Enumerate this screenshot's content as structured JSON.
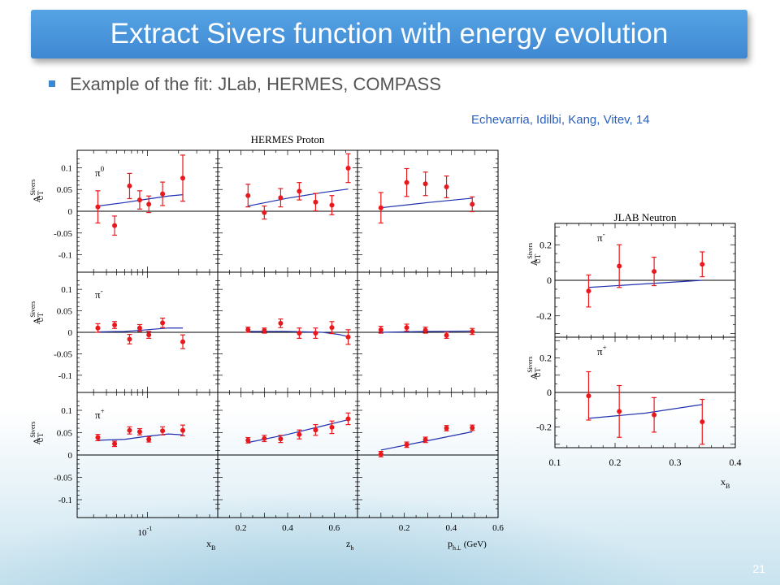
{
  "slide": {
    "title": "Extract Sivers function with energy evolution",
    "bullet": "Example of the fit: JLab, HERMES, COMPASS",
    "credit": "Echevarria, Idilbi, Kang, Vitev, 14",
    "page_number": "21"
  },
  "colors": {
    "title_bar": "#4a95dc",
    "data_point": "#e8181c",
    "fit_curve": "#1f2fb0",
    "credit_text": "#2a60c0"
  },
  "chart_data": [
    {
      "type": "scatter",
      "title": "HERMES Proton",
      "y_axis_label": {
        "main": "A",
        "sup": "Sivers",
        "sub": "UT"
      },
      "ylim": [
        -0.14,
        0.14
      ],
      "y_ticks": [
        "0.1",
        "0.05",
        "0",
        "-0.05",
        "-0.1"
      ],
      "columns": [
        {
          "xlabel": "x",
          "xlabel_sub": "B",
          "scale": "log",
          "xlim": [
            0.0208,
            0.48
          ],
          "tick_label_main": "10",
          "tick_label_exp": "-1",
          "tick_value": 0.1
        },
        {
          "xlabel": "z",
          "xlabel_sub": "h",
          "scale": "linear",
          "xlim": [
            0.1,
            0.7
          ],
          "ticks": [
            "0.2",
            "0.4",
            "0.6"
          ]
        },
        {
          "xlabel": "p",
          "xlabel_sub": "h⊥",
          "xlabel_unit": "(GeV)",
          "scale": "linear",
          "xlim": [
            0,
            0.6
          ],
          "ticks": [
            "0.2",
            "0.4",
            "0.6"
          ]
        }
      ],
      "rows": [
        {
          "label": "π",
          "label_sup": "0",
          "panels": [
            {
              "x": [
                0.033,
                0.048,
                0.067,
                0.084,
                0.103,
                0.14,
                0.22
              ],
              "y": [
                0.01,
                -0.033,
                0.058,
                0.026,
                0.016,
                0.04,
                0.076
              ],
              "err": [
                0.037,
                0.022,
                0.029,
                0.021,
                0.019,
                0.027,
                0.053
              ],
              "fit_x": [
                0.033,
                0.06,
                0.1,
                0.16,
                0.22
              ],
              "fit_y": [
                0.012,
                0.02,
                0.028,
                0.035,
                0.038
              ]
            },
            {
              "x": [
                0.23,
                0.3,
                0.37,
                0.45,
                0.52,
                0.59,
                0.66
              ],
              "y": [
                0.036,
                -0.003,
                0.031,
                0.046,
                0.021,
                0.014,
                0.099
              ],
              "err": [
                0.026,
                0.015,
                0.021,
                0.02,
                0.02,
                0.022,
                0.033
              ],
              "fit_x": [
                0.23,
                0.4,
                0.55,
                0.66
              ],
              "fit_y": [
                0.012,
                0.03,
                0.043,
                0.051
              ]
            },
            {
              "x": [
                0.1,
                0.21,
                0.29,
                0.38,
                0.49
              ],
              "y": [
                0.008,
                0.066,
                0.063,
                0.056,
                0.016
              ],
              "err": [
                0.035,
                0.032,
                0.027,
                0.025,
                0.017
              ],
              "fit_x": [
                0.1,
                0.3,
                0.49
              ],
              "fit_y": [
                0.008,
                0.02,
                0.03
              ]
            }
          ]
        },
        {
          "label": "π",
          "label_sup": "-",
          "panels": [
            {
              "x": [
                0.033,
                0.048,
                0.067,
                0.084,
                0.103,
                0.14,
                0.22
              ],
              "y": [
                0.01,
                0.017,
                -0.016,
                0.01,
                -0.006,
                0.022,
                -0.022
              ],
              "err": [
                0.01,
                0.008,
                0.011,
                0.008,
                0.008,
                0.011,
                0.016
              ],
              "fit_x": [
                0.033,
                0.06,
                0.1,
                0.16,
                0.22
              ],
              "fit_y": [
                0.001,
                0.002,
                0.006,
                0.01,
                0.01
              ]
            },
            {
              "x": [
                0.23,
                0.3,
                0.37,
                0.45,
                0.52,
                0.59,
                0.66
              ],
              "y": [
                0.006,
                0.004,
                0.021,
                -0.002,
                -0.002,
                0.011,
                -0.011
              ],
              "err": [
                0.006,
                0.006,
                0.01,
                0.012,
                0.012,
                0.014,
                0.017
              ],
              "fit_x": [
                0.23,
                0.4,
                0.55,
                0.62,
                0.66
              ],
              "fit_y": [
                0.002,
                0.002,
                0.0,
                -0.005,
                -0.01
              ]
            },
            {
              "x": [
                0.1,
                0.21,
                0.29,
                0.38,
                0.49
              ],
              "y": [
                0.006,
                0.011,
                0.005,
                -0.007,
                0.002
              ],
              "err": [
                0.008,
                0.008,
                0.007,
                0.007,
                0.007
              ],
              "fit_x": [
                0.1,
                0.3,
                0.49
              ],
              "fit_y": [
                0.0,
                0.002,
                0.003
              ]
            }
          ]
        },
        {
          "label": "π",
          "label_sup": "+",
          "panels": [
            {
              "x": [
                0.033,
                0.048,
                0.067,
                0.084,
                0.103,
                0.14,
                0.22
              ],
              "y": [
                0.039,
                0.025,
                0.055,
                0.052,
                0.035,
                0.054,
                0.055
              ],
              "err": [
                0.007,
                0.006,
                0.008,
                0.007,
                0.006,
                0.009,
                0.012
              ],
              "fit_x": [
                0.033,
                0.06,
                0.1,
                0.16,
                0.22
              ],
              "fit_y": [
                0.033,
                0.035,
                0.042,
                0.047,
                0.045
              ]
            },
            {
              "x": [
                0.23,
                0.3,
                0.37,
                0.45,
                0.52,
                0.59,
                0.66
              ],
              "y": [
                0.033,
                0.037,
                0.036,
                0.046,
                0.056,
                0.062,
                0.081
              ],
              "err": [
                0.006,
                0.007,
                0.008,
                0.01,
                0.012,
                0.014,
                0.013
              ],
              "fit_x": [
                0.23,
                0.4,
                0.55,
                0.66
              ],
              "fit_y": [
                0.028,
                0.046,
                0.065,
                0.079
              ]
            },
            {
              "x": [
                0.1,
                0.21,
                0.29,
                0.38,
                0.49
              ],
              "y": [
                0.002,
                0.023,
                0.034,
                0.06,
                0.061
              ],
              "err": [
                0.006,
                0.006,
                0.006,
                0.006,
                0.006
              ],
              "fit_x": [
                0.1,
                0.3,
                0.49
              ],
              "fit_y": [
                0.011,
                0.032,
                0.052
              ]
            }
          ]
        }
      ]
    },
    {
      "type": "scatter",
      "title": "JLAB Neutron",
      "y_axis_label": {
        "main": "A",
        "sup": "Sivers",
        "sub": "UT"
      },
      "xlabel": "x",
      "xlabel_sub": "B",
      "xlim": [
        0.1,
        0.4
      ],
      "x_ticks": [
        "0.1",
        "0.2",
        "0.3",
        "0.4"
      ],
      "ylim": [
        -0.32,
        0.32
      ],
      "y_ticks": [
        "0.2",
        "0",
        "-0.2"
      ],
      "rows": [
        {
          "label": "π",
          "label_sup": "-",
          "x": [
            0.156,
            0.207,
            0.265,
            0.345
          ],
          "y": [
            -0.06,
            0.08,
            0.05,
            0.09
          ],
          "err": [
            0.09,
            0.12,
            0.08,
            0.07
          ],
          "fit_x": [
            0.156,
            0.25,
            0.345
          ],
          "fit_y": [
            -0.04,
            -0.02,
            0.0
          ]
        },
        {
          "label": "π",
          "label_sup": "+",
          "x": [
            0.156,
            0.207,
            0.265,
            0.345
          ],
          "y": [
            -0.02,
            -0.11,
            -0.13,
            -0.17
          ],
          "err": [
            0.14,
            0.15,
            0.1,
            0.13
          ],
          "fit_x": [
            0.156,
            0.25,
            0.345
          ],
          "fit_y": [
            -0.15,
            -0.12,
            -0.07
          ]
        }
      ]
    }
  ]
}
